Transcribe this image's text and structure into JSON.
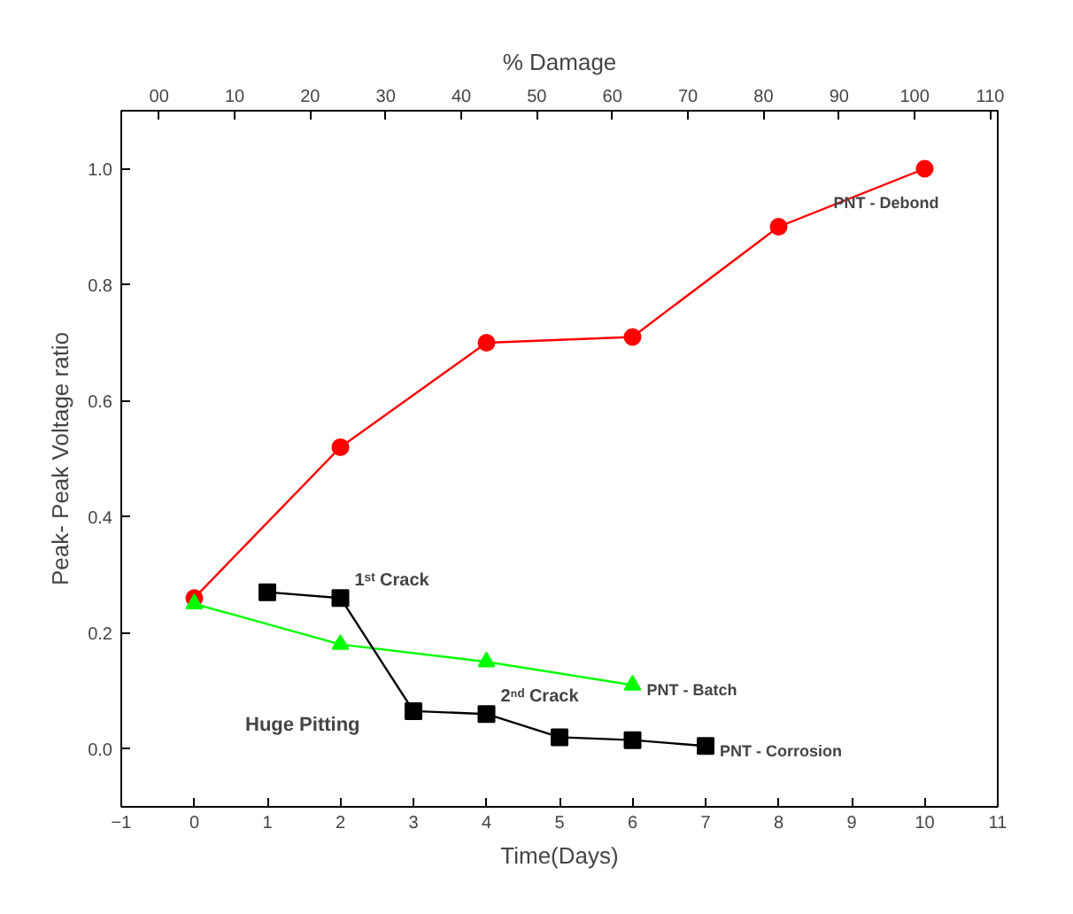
{
  "chart_data": {
    "type": "line",
    "xlabel": "Time(Days)",
    "ylabel": "Peak- Peak Voltage ratio",
    "x2label": "% Damage",
    "xlim": [
      -1,
      11
    ],
    "xticks": [
      -1,
      0,
      1,
      2,
      3,
      4,
      5,
      6,
      7,
      8,
      9,
      10,
      11
    ],
    "x2lim": [
      -5,
      111
    ],
    "x2ticks": [
      {
        "value": 0,
        "label": "00"
      },
      10,
      20,
      30,
      40,
      50,
      60,
      70,
      80,
      90,
      100,
      110
    ],
    "ylim": [
      -0.1,
      1.1
    ],
    "yticks": [
      {
        "value": 0,
        "label": "0.0"
      },
      0.2,
      0.4,
      0.6,
      0.8,
      {
        "value": 1,
        "label": "1.0"
      }
    ],
    "grid": false,
    "line_style": "solid",
    "series": [
      {
        "name": "PNT - Debond",
        "color": "#ff0000",
        "marker": "circle",
        "x": [
          0,
          2,
          4,
          6,
          8,
          10
        ],
        "values": [
          0.26,
          0.52,
          0.7,
          0.71,
          0.9,
          1.0
        ]
      },
      {
        "name": "PNT - Batch",
        "color": "#00ff00",
        "marker": "triangle",
        "x": [
          0,
          2,
          4,
          6
        ],
        "values": [
          0.25,
          0.18,
          0.15,
          0.11
        ]
      },
      {
        "name": "PNT - Corrosion",
        "color": "#000000",
        "marker": "square",
        "x": [
          1,
          2,
          3,
          4,
          5,
          6,
          7
        ],
        "values": [
          0.27,
          0.26,
          0.065,
          0.06,
          0.02,
          0.015,
          0.005
        ]
      }
    ],
    "annotations": [
      {
        "text": "1ˢᵗ Crack",
        "x": 2,
        "y": 0.26
      },
      {
        "text": "2ⁿᵈ Crack",
        "x": 4,
        "y": 0.06
      },
      "Huge Pitting"
    ]
  }
}
